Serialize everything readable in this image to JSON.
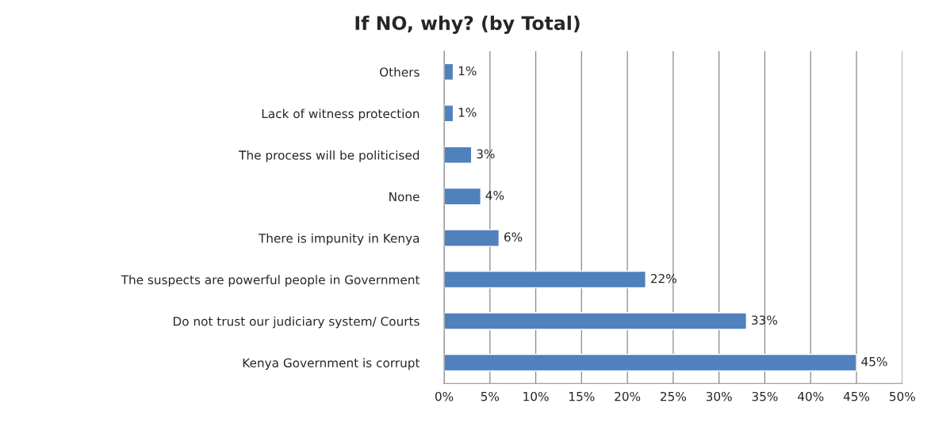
{
  "chart_data": {
    "type": "bar",
    "orientation": "horizontal",
    "title": "If NO, why? (by Total)",
    "categories": [
      "Others",
      "Lack of witness protection",
      "The process will be politicised",
      "None",
      "There is impunity in Kenya",
      "The suspects are powerful people in Government",
      "Do not trust our judiciary system/ Courts",
      "Kenya Government is corrupt"
    ],
    "values": [
      1,
      1,
      3,
      4,
      6,
      22,
      33,
      45
    ],
    "value_labels": [
      "1%",
      "1%",
      "3%",
      "4%",
      "6%",
      "22%",
      "33%",
      "45%"
    ],
    "color": "#4f81bd",
    "xlim": [
      0,
      50
    ],
    "xticks": [
      {
        "value": 0,
        "label": "0%"
      },
      {
        "value": 5,
        "label": "5%"
      },
      {
        "value": 10,
        "label": "10%"
      },
      {
        "value": 15,
        "label": "15%"
      },
      {
        "value": 20,
        "label": "20%"
      },
      {
        "value": 25,
        "label": "25%"
      },
      {
        "value": 30,
        "label": "30%"
      },
      {
        "value": 35,
        "label": "35%"
      },
      {
        "value": 40,
        "label": "40%"
      },
      {
        "value": 45,
        "label": "45%"
      },
      {
        "value": 50,
        "label": "50%"
      }
    ],
    "grid": "x",
    "legend": false
  }
}
